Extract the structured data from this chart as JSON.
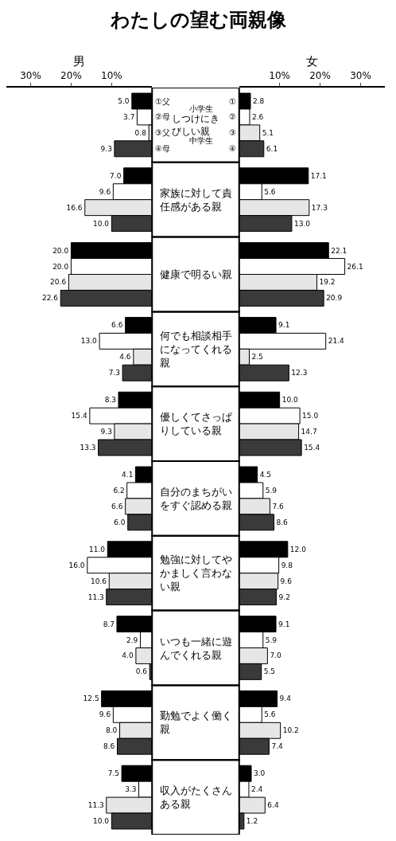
{
  "chart_data": [
    {
      "type": "bar",
      "orientation": "horizontal",
      "title": "わたしの望む両親像",
      "xlabel": "男",
      "categories": [
        "しつけにきびしい親",
        "家族に対して責任感がある親",
        "健康で明るい親",
        "何でも相談相手になってくれる親",
        "優しくてさっぱりしている親",
        "自分のまちがいをすぐ認める親",
        "勉強に対してやかましく言わない親",
        "いつも一緒に遊んでくれる親",
        "勤勉でよく働く親",
        "収入がたくさんある親"
      ],
      "series": [
        {
          "name": "①父",
          "color": "#000000",
          "values": [
            5.0,
            7.0,
            20.0,
            6.6,
            8.3,
            4.1,
            11.0,
            8.7,
            12.5,
            7.5
          ],
          "value_labels": [
            "5.0",
            "7.0",
            "20.0",
            "6.6",
            "8.3",
            "4.1",
            "11.0",
            "8.7",
            "12.5",
            "7.5"
          ]
        },
        {
          "name": "②母",
          "color": "#ffffff",
          "values": [
            3.7,
            9.6,
            20.0,
            13.0,
            15.4,
            6.2,
            16.0,
            2.9,
            9.6,
            3.3
          ],
          "value_labels": [
            "3.7",
            "9.6",
            "20.0",
            "13.0",
            "15.4",
            "6.2",
            "16.0",
            "2.9",
            "9.6",
            "3.3"
          ]
        },
        {
          "name": "③父",
          "color": "#e6e6e6",
          "values": [
            0.8,
            16.6,
            20.6,
            4.6,
            9.3,
            6.6,
            10.6,
            4.0,
            8.0,
            11.3
          ],
          "value_labels": [
            "0.8",
            "16.6",
            "20.6",
            "4.6",
            "9.3",
            "6.6",
            "10.6",
            "4.0",
            "8.0",
            "11.3"
          ]
        },
        {
          "name": "④母",
          "color": "#3a3a3a",
          "values": [
            9.3,
            10.0,
            22.6,
            7.3,
            13.3,
            6.0,
            11.3,
            0.6,
            8.6,
            10.0
          ],
          "value_labels": [
            "9.3",
            "10.0",
            "22.6",
            "7.3",
            "13.3",
            "6.0",
            "11.3",
            "0.6",
            "8.6",
            "10.0"
          ]
        }
      ],
      "annotations": [
        "小学生",
        "中学生"
      ],
      "xlim": [
        36,
        0
      ],
      "xticks": [
        {
          "value": 30,
          "label": "30%"
        },
        {
          "value": 20,
          "label": "20%"
        },
        {
          "value": 10,
          "label": "10%"
        }
      ]
    },
    {
      "type": "bar",
      "orientation": "horizontal",
      "xlabel": "女",
      "categories": [
        null,
        null,
        null,
        null,
        null,
        null,
        null,
        null,
        null,
        null
      ],
      "series": [
        {
          "name": "①",
          "color": "#000000",
          "values": [
            2.8,
            17.1,
            22.1,
            9.1,
            10.0,
            4.5,
            12.0,
            9.1,
            9.4,
            3.0
          ],
          "value_labels": [
            "2.8",
            "17.1",
            "22.1",
            "9.1",
            "10.0",
            "4.5",
            "12.0",
            "9.1",
            "9.4",
            "3.0"
          ]
        },
        {
          "name": "②",
          "color": "#ffffff",
          "values": [
            2.6,
            5.6,
            26.1,
            21.4,
            15.0,
            5.9,
            9.8,
            5.9,
            5.6,
            2.4
          ],
          "value_labels": [
            "2.6",
            "5.6",
            "26.1",
            "21.4",
            "15.0",
            "5.9",
            "9.8",
            "5.9",
            "5.6",
            "2.4"
          ]
        },
        {
          "name": "③",
          "color": "#e6e6e6",
          "values": [
            5.1,
            17.3,
            19.2,
            2.5,
            14.7,
            7.6,
            9.6,
            7.0,
            10.2,
            6.4
          ],
          "value_labels": [
            "5.1",
            "17.3",
            "19.2",
            "2.5",
            "14.7",
            "7.6",
            "9.6",
            "7.0",
            "10.2",
            "6.4"
          ]
        },
        {
          "name": "④",
          "color": "#3a3a3a",
          "values": [
            6.1,
            13.0,
            20.9,
            12.3,
            15.4,
            8.6,
            9.2,
            5.5,
            7.4,
            1.2
          ],
          "value_labels": [
            "6.1",
            "13.0",
            "20.9",
            "12.3",
            "15.4",
            "8.6",
            "9.2",
            "5.5",
            "7.4",
            "1.2"
          ]
        }
      ],
      "xlim": [
        0,
        36
      ],
      "xticks": [
        {
          "value": 10,
          "label": "10%"
        },
        {
          "value": 20,
          "label": "20%"
        },
        {
          "value": 30,
          "label": "30%"
        }
      ]
    }
  ]
}
